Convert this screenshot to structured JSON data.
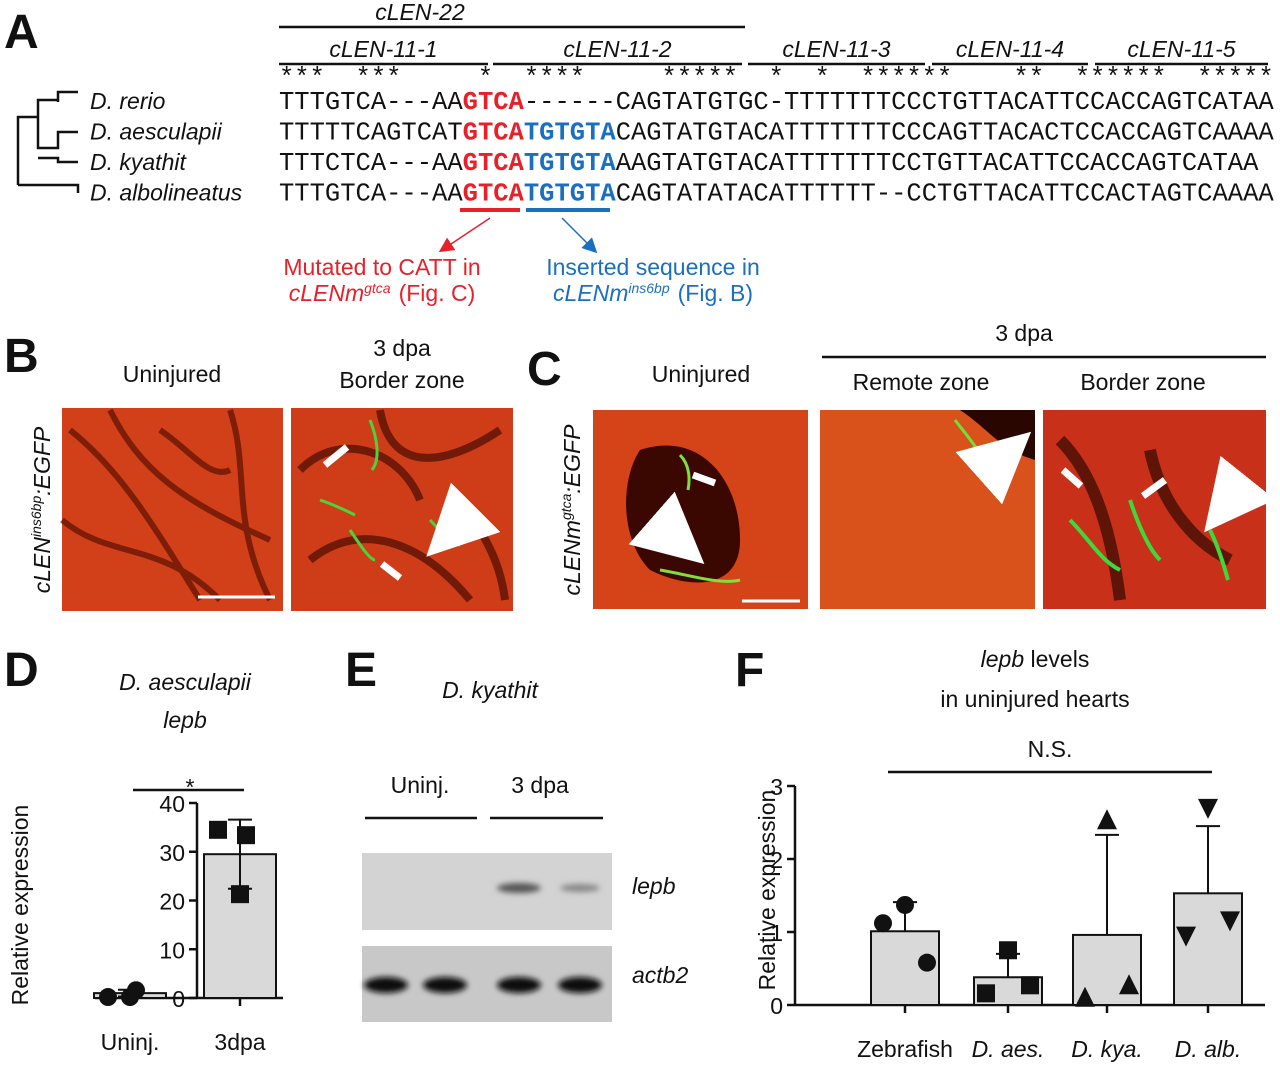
{
  "panel_a": {
    "label": "A",
    "construct": "cLEN-22",
    "segments": [
      "cLEN-11-1",
      "cLEN-11-2",
      "cLEN-11-3",
      "cLEN-11-4",
      "cLEN-11-5"
    ],
    "conservation": "***  ***     *  ****     *****  *  *  ******    **  ******  ***** ****  **",
    "site_color": "#e8202a",
    "insert_color": "#1b6fc0",
    "sequences": [
      {
        "species": "D. rerio",
        "pre": "TTTGTCA---AA",
        "site": "GTCA",
        "post": "------CAGTATGTGC-TTTTTTTCCCTGTTACATTCCACCAGTCATAA"
      },
      {
        "species": "D. aesculapii",
        "pre": "TTTTTCAGTCAT",
        "site": "GTCA",
        "insert": "TGTGTA",
        "post": "CAGTATGTACATTTTTTTCCCAGTTACACTCCACCAGTCAAAA"
      },
      {
        "species": "D. kyathit",
        "pre": "TTTCTCA---AA",
        "site": "GTCA",
        "insert": "TGTGTA",
        "post": "AAGTATGTACATTTTTTTCCTGTTACATTCCACCAGTCATAA"
      },
      {
        "species": "D. albolineatus",
        "pre": "TTTGTCA---AA",
        "site": "GTCA",
        "insert": "TGTGTA",
        "post": "CAGTATATACATTTTTT--CCTGTTACATTCCACTAGTCAAAA"
      }
    ],
    "note_red": {
      "line1": "Mutated to CATT in",
      "name": "cLENm",
      "sup": "gtca",
      "ref": "(Fig. C)"
    },
    "note_blue": {
      "line1": "Inserted sequence in",
      "name": "cLENm",
      "sup": "ins6bp",
      "ref": "(Fig. B)"
    }
  },
  "panel_b": {
    "label": "B",
    "uninjured": "Uninjured",
    "time": "3 dpa",
    "zone": "Border zone",
    "ylabel": {
      "name": "cLEN",
      "sup": "ins6bp",
      "suffix": ":EGFP"
    }
  },
  "panel_c": {
    "label": "C",
    "uninjured": "Uninjured",
    "time": "3 dpa",
    "remote": "Remote zone",
    "zone": "Border zone",
    "ylabel": {
      "name": "cLENm",
      "sup": "gtca",
      "suffix": ":EGFP"
    }
  },
  "panel_e": {
    "label": "E",
    "title": "D. kyathit",
    "groups": [
      "Uninj.",
      "3 dpa"
    ],
    "genes": [
      "lepb",
      "actb2"
    ]
  },
  "chart_data": [
    {
      "type": "bar",
      "label": "D",
      "title": [
        "D. aesculapii",
        "lepb"
      ],
      "ylabel": "Relative expression",
      "annotation": "*",
      "categories": [
        "Uninj.",
        "3dpa"
      ],
      "values": [
        1.0,
        29.5
      ],
      "errors": [
        0.7,
        7.1
      ],
      "error_direction": "both",
      "points": [
        [
          0.2,
          1.6,
          0.2
        ],
        [
          34.5,
          33.4,
          21.3
        ]
      ],
      "markers": [
        "circle",
        "square"
      ],
      "color": "#d9d9d9",
      "ylim": [
        0,
        40
      ],
      "yticks": [
        0,
        10,
        20,
        30,
        40
      ]
    },
    {
      "type": "bar",
      "label": "F",
      "title_italic": "lepb",
      "title_rest": "levels",
      "title_line2": "in uninjured hearts",
      "ylabel": "Relative expression",
      "annotation": "N.S.",
      "categories": [
        "Zebrafish",
        "D. aes.",
        "D. kya.",
        "D. alb."
      ],
      "values": [
        1.01,
        0.38,
        0.96,
        1.53
      ],
      "errors": [
        0.4,
        0.32,
        1.37,
        0.92
      ],
      "error_direction": "up",
      "points": [
        [
          1.37,
          1.12,
          0.58
        ],
        [
          0.75,
          0.16,
          0.27
        ],
        [
          2.53,
          0.1,
          0.27
        ],
        [
          2.7,
          0.95,
          1.16
        ]
      ],
      "markers": [
        "circle",
        "square",
        "triangle",
        "triangle-down"
      ],
      "color": "#d9d9d9",
      "ylim": [
        0,
        3
      ],
      "yticks": [
        0,
        1,
        2,
        3
      ]
    }
  ]
}
